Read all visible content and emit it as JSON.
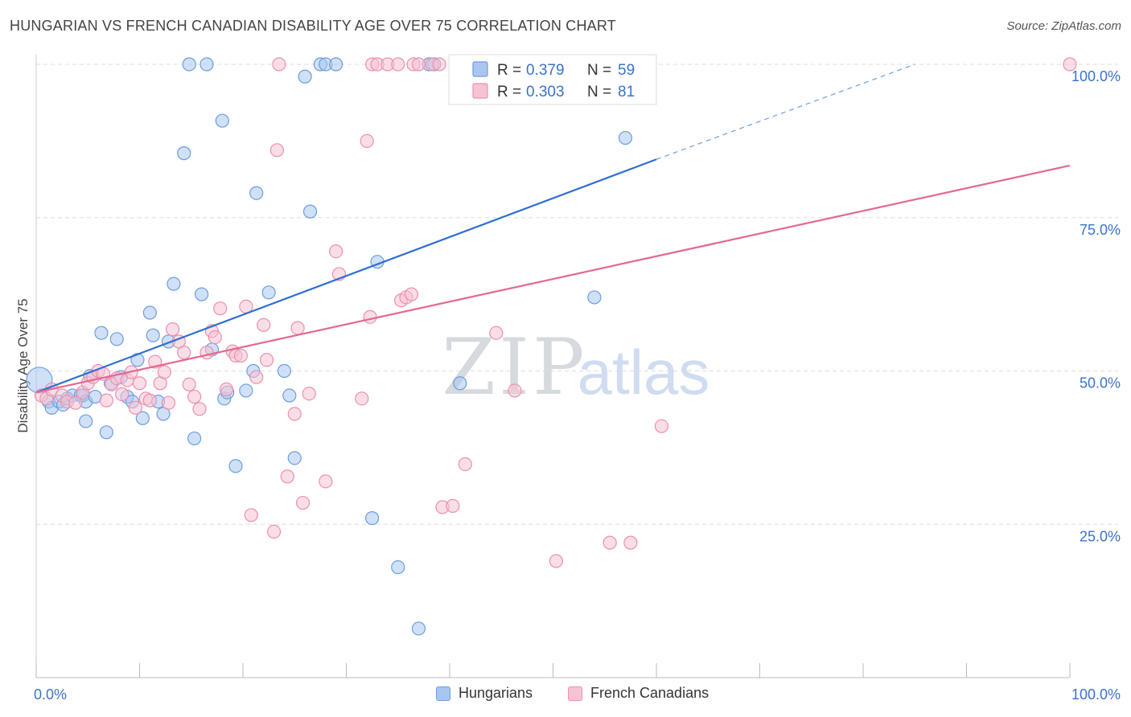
{
  "header": {
    "title": "HUNGARIAN VS FRENCH CANADIAN DISABILITY AGE OVER 75 CORRELATION CHART",
    "source": "Source: ZipAtlas.com"
  },
  "watermark": {
    "zip": "ZIP",
    "atlas": "atlas"
  },
  "colors": {
    "blue_fill": "#a9c7ee",
    "blue_stroke": "#6b9ee0",
    "blue_line": "#2f6fcf",
    "pink_fill": "#f6c3d3",
    "pink_stroke": "#ec8fae",
    "pink_line": "#e4688f",
    "tick_label": "#3a73c9",
    "grid": "#dddddd"
  },
  "chart_data": {
    "type": "scatter",
    "title": "HUNGARIAN VS FRENCH CANADIAN DISABILITY AGE OVER 75 CORRELATION CHART",
    "xlabel": "",
    "ylabel": "Disability Age Over 75",
    "xlim": [
      0,
      100
    ],
    "ylim": [
      0,
      100
    ],
    "x_tick_labels": [
      "0.0%",
      "100.0%"
    ],
    "y_ticks": [
      25,
      50,
      75,
      100
    ],
    "y_tick_labels": [
      "25.0%",
      "50.0%",
      "75.0%",
      "100.0%"
    ],
    "grid": true,
    "legend_position": "top-center",
    "legend": [
      {
        "r_label": "R =",
        "r_value": "0.379",
        "n_label": "N =",
        "n_value": "59"
      },
      {
        "r_label": "R =",
        "r_value": "0.303",
        "n_label": "N =",
        "n_value": "81"
      }
    ],
    "series": [
      {
        "name": "Hungarians",
        "color": "#6b9ee0",
        "trend": {
          "x0": 0,
          "y0": 46.5,
          "x1": 60,
          "y1": 84.5,
          "dashed_to_x": 85,
          "dashed_to_y": 100
        },
        "points": [
          [
            0.3,
            48.5
          ],
          [
            1.2,
            45
          ],
          [
            1.5,
            44
          ],
          [
            2.2,
            45
          ],
          [
            2.6,
            44.5
          ],
          [
            3,
            45.5
          ],
          [
            3.5,
            46
          ],
          [
            4.3,
            46
          ],
          [
            4.5,
            46
          ],
          [
            4.8,
            45
          ],
          [
            4.8,
            41.8
          ],
          [
            5.2,
            49.2
          ],
          [
            5.7,
            45.8
          ],
          [
            6.3,
            56.2
          ],
          [
            6.8,
            40
          ],
          [
            7.2,
            48
          ],
          [
            7.8,
            55.2
          ],
          [
            8.2,
            49
          ],
          [
            8.8,
            45.8
          ],
          [
            9.3,
            45
          ],
          [
            9.8,
            51.8
          ],
          [
            10.3,
            42.3
          ],
          [
            11,
            59.5
          ],
          [
            11.3,
            55.8
          ],
          [
            11.8,
            45
          ],
          [
            12.3,
            43
          ],
          [
            12.8,
            54.8
          ],
          [
            13.3,
            64.2
          ],
          [
            14.3,
            85.5
          ],
          [
            14.8,
            100
          ],
          [
            15.3,
            39
          ],
          [
            16,
            62.5
          ],
          [
            16.5,
            100
          ],
          [
            17,
            53.5
          ],
          [
            18,
            90.8
          ],
          [
            18.2,
            45.5
          ],
          [
            18.5,
            46.5
          ],
          [
            19.3,
            34.5
          ],
          [
            20.3,
            46.8
          ],
          [
            21,
            50
          ],
          [
            21.3,
            79
          ],
          [
            22.5,
            62.8
          ],
          [
            24,
            50
          ],
          [
            24.5,
            46
          ],
          [
            25,
            35.8
          ],
          [
            26,
            98
          ],
          [
            26.5,
            76
          ],
          [
            27.5,
            100
          ],
          [
            28,
            100
          ],
          [
            29,
            100
          ],
          [
            32.5,
            26
          ],
          [
            33,
            67.8
          ],
          [
            35,
            18
          ],
          [
            37,
            8
          ],
          [
            38,
            100
          ],
          [
            38.5,
            100
          ],
          [
            41,
            48
          ],
          [
            54,
            62
          ],
          [
            57,
            88
          ]
        ]
      },
      {
        "name": "French Canadians",
        "color": "#ec8fae",
        "trend": {
          "x0": 0,
          "y0": 46.5,
          "x1": 100,
          "y1": 83.5
        },
        "points": [
          [
            0.5,
            46
          ],
          [
            1,
            45.5
          ],
          [
            1.5,
            47
          ],
          [
            2.5,
            46
          ],
          [
            3,
            45
          ],
          [
            3.8,
            44.8
          ],
          [
            4.5,
            46.5
          ],
          [
            5,
            48
          ],
          [
            5.5,
            49
          ],
          [
            6,
            50
          ],
          [
            6.5,
            49.5
          ],
          [
            6.8,
            45.2
          ],
          [
            7.3,
            47.8
          ],
          [
            7.8,
            48.8
          ],
          [
            8.3,
            46.2
          ],
          [
            8.8,
            48.5
          ],
          [
            9.2,
            49.8
          ],
          [
            9.6,
            44
          ],
          [
            10,
            48
          ],
          [
            10.6,
            45.5
          ],
          [
            11,
            45.2
          ],
          [
            11.5,
            51.5
          ],
          [
            12,
            48
          ],
          [
            12.4,
            49.8
          ],
          [
            12.8,
            44.8
          ],
          [
            13.2,
            56.8
          ],
          [
            13.8,
            54.8
          ],
          [
            14.3,
            53
          ],
          [
            14.8,
            47.8
          ],
          [
            15.3,
            45.8
          ],
          [
            15.8,
            43.8
          ],
          [
            16.5,
            53
          ],
          [
            17,
            56.5
          ],
          [
            17.3,
            55.5
          ],
          [
            17.8,
            60.2
          ],
          [
            18.4,
            47
          ],
          [
            19,
            53.2
          ],
          [
            19.3,
            52.5
          ],
          [
            19.8,
            52.5
          ],
          [
            20.3,
            60.5
          ],
          [
            20.8,
            26.5
          ],
          [
            21.3,
            49
          ],
          [
            22,
            57.5
          ],
          [
            22.3,
            51.8
          ],
          [
            23,
            23.8
          ],
          [
            23.3,
            86
          ],
          [
            23.5,
            100
          ],
          [
            24.3,
            32.8
          ],
          [
            25,
            43
          ],
          [
            25.3,
            57
          ],
          [
            25.8,
            28.5
          ],
          [
            26.4,
            46.3
          ],
          [
            28,
            32
          ],
          [
            29,
            69.5
          ],
          [
            29.3,
            65.8
          ],
          [
            31.5,
            45.5
          ],
          [
            32,
            87.5
          ],
          [
            32.3,
            58.8
          ],
          [
            32.5,
            100
          ],
          [
            33,
            100
          ],
          [
            34,
            100
          ],
          [
            35,
            100
          ],
          [
            35.3,
            61.5
          ],
          [
            35.8,
            62
          ],
          [
            36.3,
            62.5
          ],
          [
            36.5,
            100
          ],
          [
            37,
            100
          ],
          [
            38.3,
            100
          ],
          [
            39,
            100
          ],
          [
            39.3,
            27.8
          ],
          [
            40.3,
            28
          ],
          [
            41,
            100
          ],
          [
            41.5,
            34.8
          ],
          [
            42,
            100
          ],
          [
            44.5,
            56.2
          ],
          [
            46.3,
            46.8
          ],
          [
            50.3,
            19
          ],
          [
            55.5,
            22
          ],
          [
            57.5,
            22
          ],
          [
            60.5,
            41
          ],
          [
            100,
            100
          ]
        ]
      }
    ]
  },
  "legend_bottom": {
    "items": [
      "Hungarians",
      "French Canadians"
    ]
  }
}
